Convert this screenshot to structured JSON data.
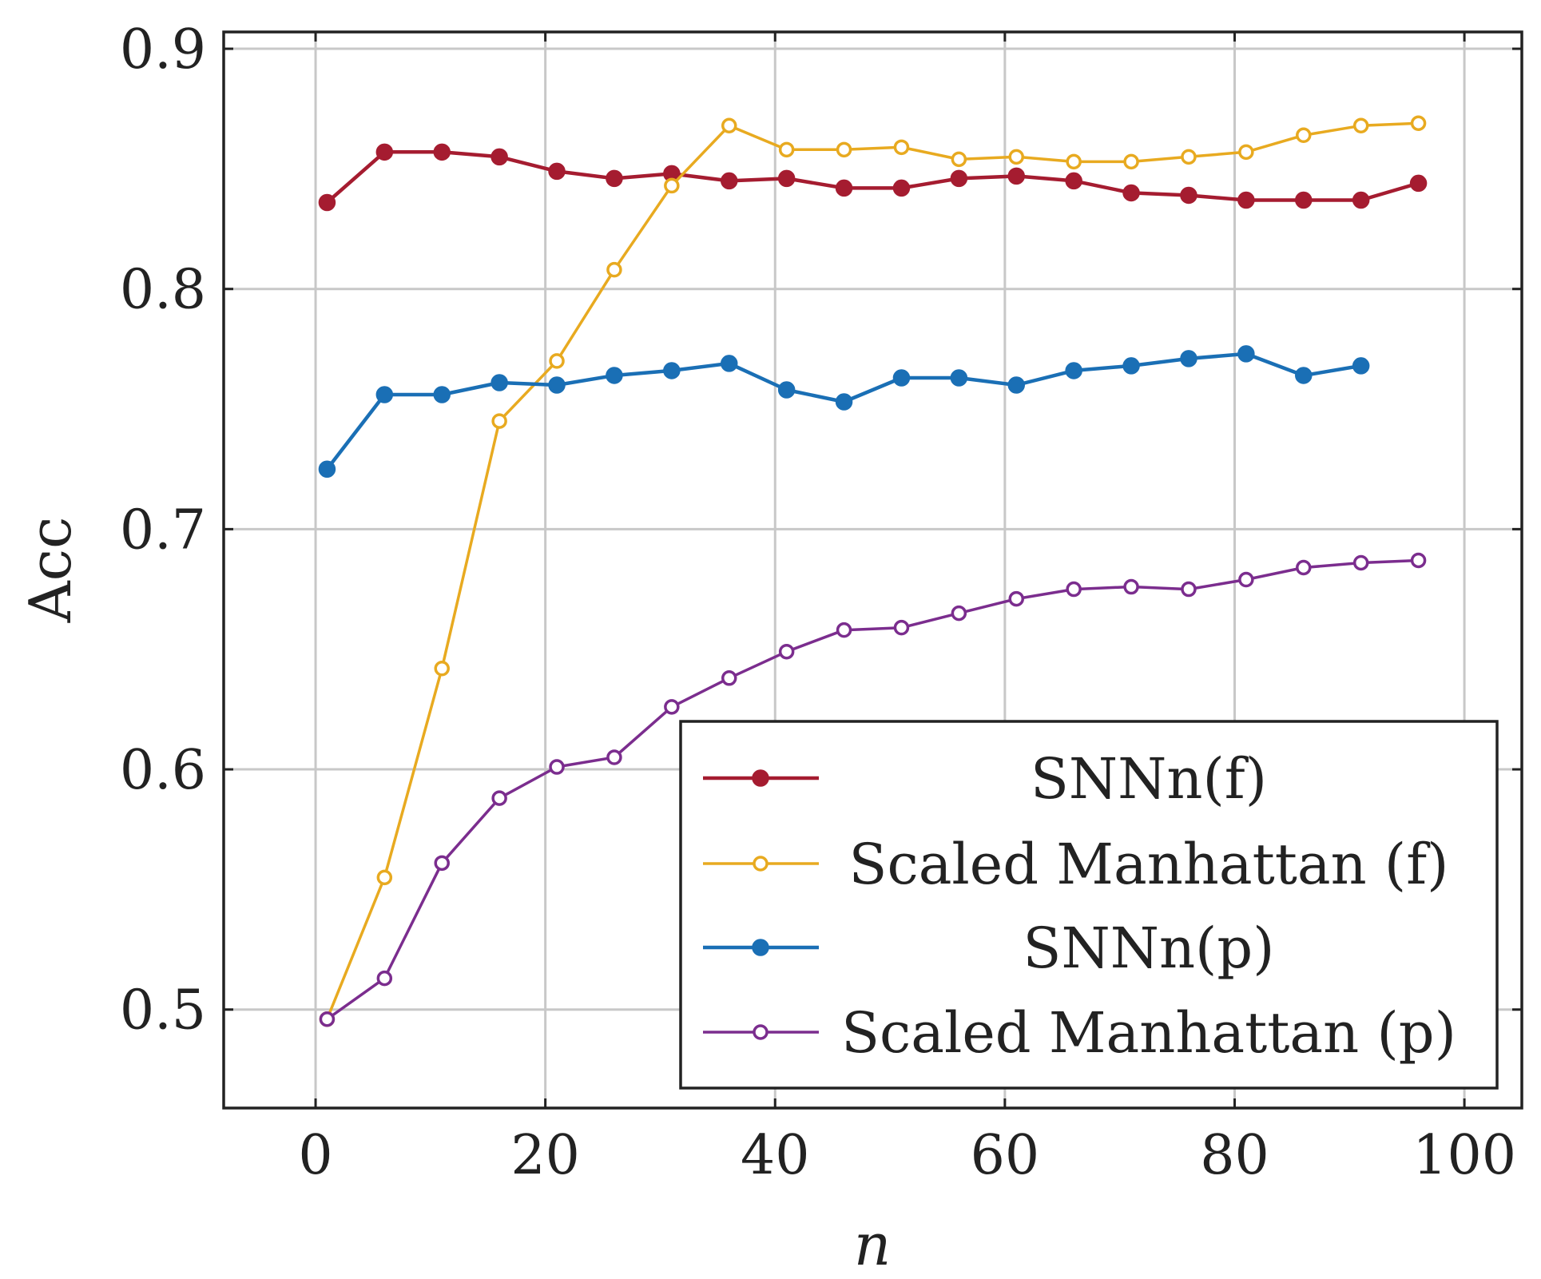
{
  "chart_data": {
    "type": "line",
    "title": "",
    "xlabel": "n",
    "ylabel": "Acc",
    "xlim": [
      -8,
      105
    ],
    "ylim": [
      0.459,
      0.907
    ],
    "xticks": [
      0,
      20,
      40,
      60,
      80,
      100
    ],
    "yticks": [
      0.5,
      0.6,
      0.7,
      0.8,
      0.9
    ],
    "xtick_labels": [
      "0",
      "20",
      "40",
      "60",
      "80",
      "100"
    ],
    "ytick_labels": [
      "0.5",
      "0.6",
      "0.7",
      "0.8",
      "0.9"
    ],
    "grid": true,
    "legend_position": "bottom-right",
    "series": [
      {
        "name": "SNNn(f)",
        "color": "#a51c30",
        "marker": "filled-circle",
        "x": [
          1,
          6,
          11,
          16,
          21,
          26,
          31,
          36,
          41,
          46,
          51,
          56,
          61,
          66,
          71,
          76,
          81,
          86,
          91,
          96
        ],
        "values": [
          0.836,
          0.857,
          0.857,
          0.855,
          0.849,
          0.846,
          0.848,
          0.845,
          0.846,
          0.842,
          0.842,
          0.846,
          0.847,
          0.845,
          0.84,
          0.839,
          0.837,
          0.837,
          0.837,
          0.844
        ]
      },
      {
        "name": "Scaled Manhattan (f)",
        "color": "#e8aa20",
        "marker": "open-circle",
        "x": [
          1,
          6,
          11,
          16,
          21,
          26,
          31,
          36,
          41,
          46,
          51,
          56,
          61,
          66,
          71,
          76,
          81,
          86,
          91,
          96
        ],
        "values": [
          0.496,
          0.555,
          0.642,
          0.745,
          0.77,
          0.808,
          0.843,
          0.868,
          0.858,
          0.858,
          0.859,
          0.854,
          0.855,
          0.853,
          0.853,
          0.855,
          0.857,
          0.864,
          0.868,
          0.869
        ]
      },
      {
        "name": "SNNn(p)",
        "color": "#1a6fb5",
        "marker": "filled-circle",
        "x": [
          1,
          6,
          11,
          16,
          21,
          26,
          31,
          36,
          41,
          46,
          51,
          56,
          61,
          66,
          71,
          76,
          81,
          86,
          91
        ],
        "values": [
          0.725,
          0.756,
          0.756,
          0.761,
          0.76,
          0.764,
          0.766,
          0.769,
          0.758,
          0.753,
          0.763,
          0.763,
          0.76,
          0.766,
          0.768,
          0.771,
          0.773,
          0.764,
          0.768
        ]
      },
      {
        "name": "Scaled Manhattan (p)",
        "color": "#7b2d8e",
        "marker": "open-circle",
        "x": [
          1,
          6,
          11,
          16,
          21,
          26,
          31,
          36,
          41,
          46,
          51,
          56,
          61,
          66,
          71,
          76,
          81,
          86,
          91,
          96
        ],
        "values": [
          0.496,
          0.513,
          0.561,
          0.588,
          0.601,
          0.605,
          0.626,
          0.638,
          0.649,
          0.658,
          0.659,
          0.665,
          0.671,
          0.675,
          0.676,
          0.675,
          0.679,
          0.684,
          0.686,
          0.687
        ]
      }
    ]
  }
}
